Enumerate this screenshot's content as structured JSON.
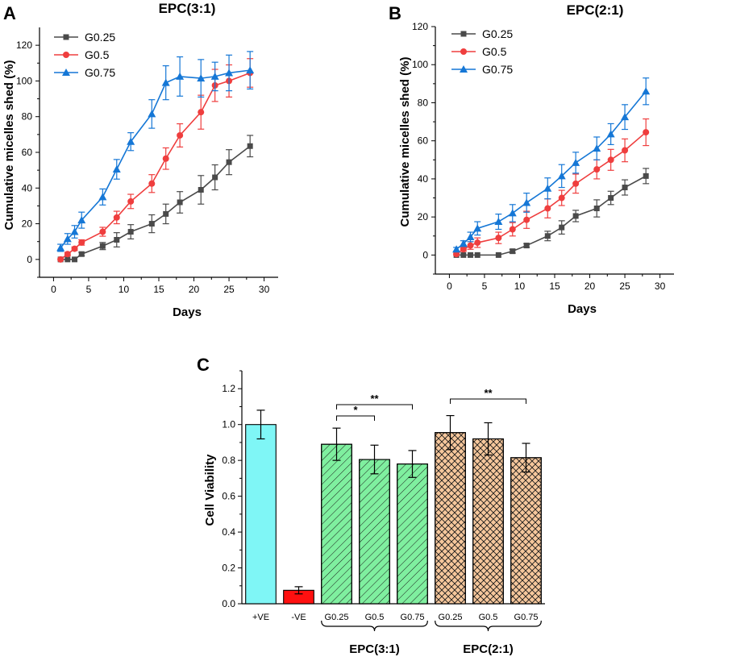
{
  "chart_data": [
    {
      "panel": "A",
      "type": "line",
      "title": "EPC(3:1)",
      "xlabel": "Days",
      "ylabel": "Cumulative micelles shed (%)",
      "xlim": [
        -2,
        32
      ],
      "ylim": [
        -10,
        130
      ],
      "xticks": [
        0,
        5,
        10,
        15,
        20,
        25,
        30
      ],
      "yticks": [
        0,
        20,
        40,
        60,
        80,
        100,
        120
      ],
      "x": [
        1,
        2,
        3,
        4,
        7,
        9,
        11,
        14,
        16,
        18,
        21,
        23,
        25,
        28
      ],
      "series": [
        {
          "name": "G0.25",
          "color": "#4a4a4a",
          "marker": "square",
          "values": [
            0,
            0,
            0,
            3,
            7.5,
            11,
            15.5,
            20,
            25.5,
            32,
            39,
            46,
            54.5,
            63.5
          ],
          "errors": [
            0,
            0,
            0,
            1,
            2,
            4,
            4,
            5,
            5.5,
            6,
            8,
            7,
            7,
            6
          ]
        },
        {
          "name": "G0.5",
          "color": "#ef3e3e",
          "marker": "circle",
          "values": [
            0,
            3,
            6,
            9.5,
            15.5,
            23.5,
            32.5,
            42.5,
            56.5,
            69.5,
            82.5,
            97.5,
            100,
            104.5
          ],
          "errors": [
            0,
            1,
            1,
            1.5,
            2.5,
            3.5,
            4,
            5,
            6,
            6.5,
            9.5,
            9,
            9,
            8
          ]
        },
        {
          "name": "G0.75",
          "color": "#1577d6",
          "marker": "triangle",
          "values": [
            6.5,
            11.5,
            15.5,
            22,
            35,
            50.5,
            66,
            81.5,
            99,
            102.5,
            101.5,
            102.5,
            104.5,
            106
          ],
          "errors": [
            2,
            3,
            3.5,
            4.5,
            4.5,
            5.5,
            5,
            8,
            9.5,
            11,
            10.5,
            8,
            10,
            10.5
          ]
        }
      ]
    },
    {
      "panel": "B",
      "type": "line",
      "title": "EPC(2:1)",
      "xlabel": "Days",
      "ylabel": "Cumulative micelles shed (%)",
      "xlim": [
        -2,
        32
      ],
      "ylim": [
        -10,
        120
      ],
      "xticks": [
        0,
        5,
        10,
        15,
        20,
        25,
        30
      ],
      "yticks": [
        0,
        20,
        40,
        60,
        80,
        100,
        120
      ],
      "x": [
        1,
        2,
        3,
        4,
        7,
        9,
        11,
        14,
        16,
        18,
        21,
        23,
        25,
        28
      ],
      "series": [
        {
          "name": "G0.25",
          "color": "#4a4a4a",
          "marker": "square",
          "values": [
            0,
            0,
            0,
            0,
            0,
            2,
            5,
            10,
            14.5,
            20.5,
            24.5,
            30,
            35.5,
            41.5
          ],
          "errors": [
            0,
            0,
            0,
            0,
            0,
            1,
            1,
            2.5,
            3.5,
            3,
            4.5,
            3.5,
            4,
            4
          ]
        },
        {
          "name": "G0.5",
          "color": "#ef3e3e",
          "marker": "circle",
          "values": [
            0.5,
            3,
            5,
            6.5,
            9,
            13.5,
            18.5,
            24.5,
            30,
            37.5,
            45,
            50,
            55,
            64.5
          ],
          "errors": [
            0.5,
            1,
            2,
            2.5,
            3,
            3.5,
            4.5,
            5,
            4,
            5,
            5,
            5.5,
            6,
            7
          ]
        },
        {
          "name": "G0.75",
          "color": "#1577d6",
          "marker": "triangle",
          "values": [
            3,
            6,
            9.5,
            14,
            17.5,
            22,
            27.5,
            35,
            41.5,
            48.5,
            56,
            63.5,
            72.5,
            86
          ],
          "errors": [
            1,
            1.5,
            2.5,
            3.5,
            4,
            4.5,
            5,
            5.5,
            6,
            5.5,
            6,
            5.5,
            6.5,
            7
          ]
        }
      ]
    },
    {
      "panel": "C",
      "type": "bar",
      "ylabel": "Cell Viability",
      "ylim": [
        0,
        1.3
      ],
      "yticks": [
        "0.0",
        "0.2",
        "0.4",
        "0.6",
        "0.8",
        "1.0",
        "1.2"
      ],
      "categories": [
        "+VE",
        "-VE",
        "G0.25",
        "G0.5",
        "G0.75",
        "G0.25",
        "G0.5",
        "G0.75"
      ],
      "values": [
        1.0,
        0.075,
        0.89,
        0.805,
        0.78,
        0.955,
        0.92,
        0.815
      ],
      "errors": [
        0.08,
        0.02,
        0.09,
        0.08,
        0.075,
        0.095,
        0.09,
        0.08
      ],
      "bar_styles": [
        {
          "fill": "#7ff6f6",
          "pattern": "none"
        },
        {
          "fill": "#ff1010",
          "pattern": "none"
        },
        {
          "fill": "#7fef9f",
          "pattern": "diagonal"
        },
        {
          "fill": "#7fef9f",
          "pattern": "diagonal"
        },
        {
          "fill": "#7fef9f",
          "pattern": "diagonal"
        },
        {
          "fill": "#f6c79c",
          "pattern": "crosshatch"
        },
        {
          "fill": "#f6c79c",
          "pattern": "crosshatch"
        },
        {
          "fill": "#f6c79c",
          "pattern": "crosshatch"
        }
      ],
      "groups": [
        {
          "label": "EPC(3:1)",
          "from": 2,
          "to": 4
        },
        {
          "label": "EPC(2:1)",
          "from": 5,
          "to": 7
        }
      ],
      "significance": [
        {
          "from": 2,
          "to": 3,
          "label": "*"
        },
        {
          "from": 2,
          "to": 4,
          "label": "**"
        },
        {
          "from": 5,
          "to": 7,
          "label": "**"
        }
      ]
    }
  ],
  "panel_letters": [
    "A",
    "B",
    "C"
  ]
}
